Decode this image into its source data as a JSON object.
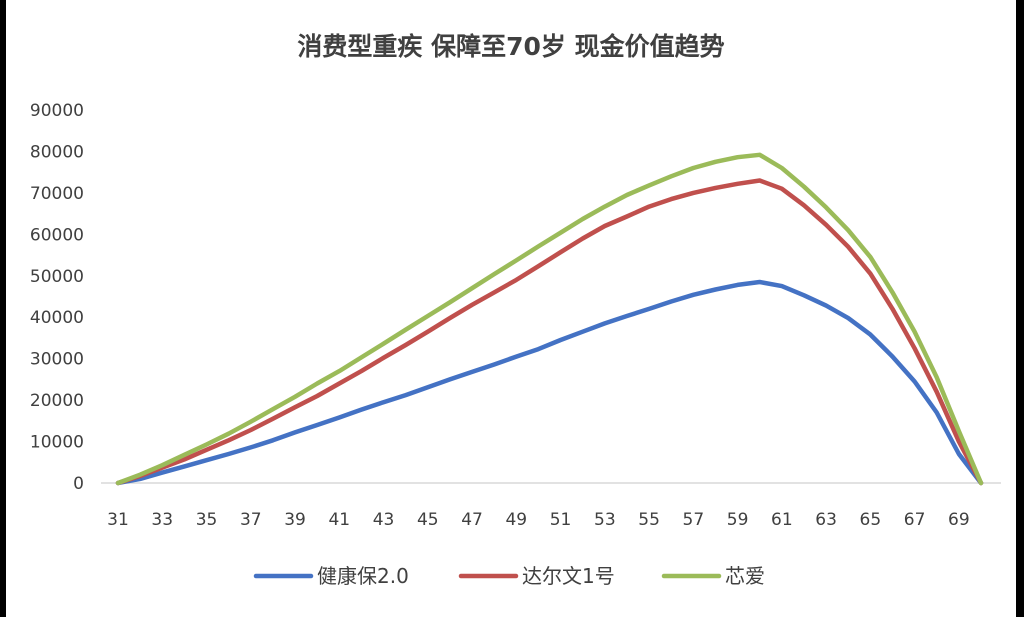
{
  "chart_data": {
    "type": "line",
    "title": "消费型重疾 保障至70岁 现金价值趋势",
    "xlabel": "",
    "ylabel": "",
    "ylim": [
      0,
      90000
    ],
    "yticks": [
      "0",
      "10000",
      "20000",
      "30000",
      "40000",
      "50000",
      "60000",
      "70000",
      "80000",
      "90000"
    ],
    "x": [
      31,
      32,
      33,
      34,
      35,
      36,
      37,
      38,
      39,
      40,
      41,
      42,
      43,
      44,
      45,
      46,
      47,
      48,
      49,
      50,
      51,
      52,
      53,
      54,
      55,
      56,
      57,
      58,
      59,
      60,
      61,
      62,
      63,
      64,
      65,
      66,
      67,
      68,
      69,
      70
    ],
    "xticks": [
      "31",
      "33",
      "35",
      "37",
      "39",
      "41",
      "43",
      "45",
      "47",
      "49",
      "51",
      "53",
      "55",
      "57",
      "59",
      "61",
      "63",
      "65",
      "67",
      "69"
    ],
    "grid": false,
    "legend_position": "bottom",
    "series": [
      {
        "name": "健康保2.0",
        "color": "#4472C4",
        "values": [
          0,
          1000,
          2500,
          4000,
          5500,
          7000,
          8600,
          10300,
          12200,
          14000,
          15800,
          17700,
          19500,
          21200,
          23100,
          25000,
          26800,
          28600,
          30500,
          32300,
          34500,
          36500,
          38500,
          40300,
          42000,
          43800,
          45400,
          46700,
          47800,
          48500,
          47500,
          45300,
          42800,
          39800,
          35800,
          30500,
          24500,
          17000,
          7000,
          0
        ]
      },
      {
        "name": "达尔文1号",
        "color": "#C0504D",
        "values": [
          0,
          1700,
          3700,
          5700,
          8000,
          10300,
          12800,
          15500,
          18300,
          21000,
          24000,
          27000,
          30200,
          33300,
          36500,
          39800,
          43000,
          46000,
          49000,
          52300,
          55700,
          59000,
          62000,
          64300,
          66700,
          68500,
          70000,
          71200,
          72200,
          73000,
          71000,
          67000,
          62300,
          57000,
          50500,
          42000,
          32500,
          22000,
          10000,
          0
        ]
      },
      {
        "name": "芯爱",
        "color": "#9BBB59",
        "values": [
          0,
          2000,
          4300,
          6800,
          9300,
          11900,
          14800,
          17800,
          20800,
          24000,
          27000,
          30300,
          33600,
          37000,
          40300,
          43600,
          47000,
          50400,
          53700,
          57100,
          60400,
          63700,
          66700,
          69500,
          71800,
          74000,
          76000,
          77500,
          78600,
          79200,
          76000,
          71500,
          66500,
          61000,
          54500,
          46000,
          36500,
          25500,
          12500,
          0
        ]
      }
    ]
  }
}
